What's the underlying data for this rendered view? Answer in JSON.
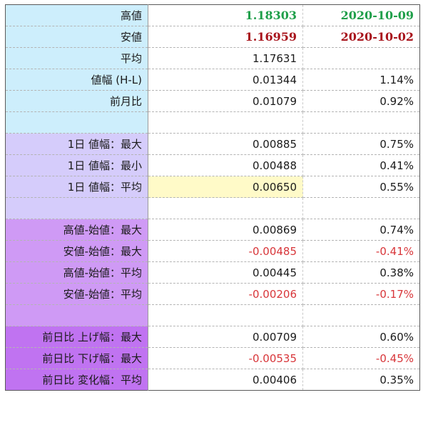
{
  "colors": {
    "band1": "#cdeefc",
    "band2": "#d5ccfb",
    "band3": "#cf9af5",
    "band4": "#c073f1",
    "high_green": "#1f9f4a",
    "low_darkred": "#a8141c",
    "negative": "#d8363a",
    "highlight": "#fffac8"
  },
  "rows": [
    {
      "label": "高値",
      "v1": "1.18303",
      "v2": "2020-10-09",
      "style": "high",
      "band": "band1"
    },
    {
      "label": "安値",
      "v1": "1.16959",
      "v2": "2020-10-02",
      "style": "low",
      "band": "band1"
    },
    {
      "label": "平均",
      "v1": "1.17631",
      "v2": "",
      "band": "band1"
    },
    {
      "label": "値幅 (H-L)",
      "v1": "0.01344",
      "v2": "1.14%",
      "band": "band1"
    },
    {
      "label": "前月比",
      "v1": "0.01079",
      "v2": "0.92%",
      "band": "band1"
    },
    {
      "label": "",
      "v1": "",
      "v2": "",
      "band": "band1"
    },
    {
      "label": "1日 値幅：最大",
      "v1": "0.00885",
      "v2": "0.75%",
      "band": "band2"
    },
    {
      "label": "1日 値幅：最小",
      "v1": "0.00488",
      "v2": "0.41%",
      "band": "band2"
    },
    {
      "label": "1日 値幅：平均",
      "v1": "0.00650",
      "v2": "0.55%",
      "band": "band2",
      "highlight": true
    },
    {
      "label": "",
      "v1": "",
      "v2": "",
      "band": "band2"
    },
    {
      "label": "高値-始値：最大",
      "v1": "0.00869",
      "v2": "0.74%",
      "band": "band3"
    },
    {
      "label": "安値-始値：最大",
      "v1": "-0.00485",
      "v2": "-0.41%",
      "band": "band3",
      "negative": true
    },
    {
      "label": "高値-始値：平均",
      "v1": "0.00445",
      "v2": "0.38%",
      "band": "band3"
    },
    {
      "label": "安値-始値：平均",
      "v1": "-0.00206",
      "v2": "-0.17%",
      "band": "band3",
      "negative": true
    },
    {
      "label": "",
      "v1": "",
      "v2": "",
      "band": "band3"
    },
    {
      "label": "前日比 上げ幅：最大",
      "v1": "0.00709",
      "v2": "0.60%",
      "band": "band4"
    },
    {
      "label": "前日比 下げ幅：最大",
      "v1": "-0.00535",
      "v2": "-0.45%",
      "band": "band4",
      "negative": true
    },
    {
      "label": "前日比 変化幅：平均",
      "v1": "0.00406",
      "v2": "0.35%",
      "band": "band4"
    }
  ]
}
